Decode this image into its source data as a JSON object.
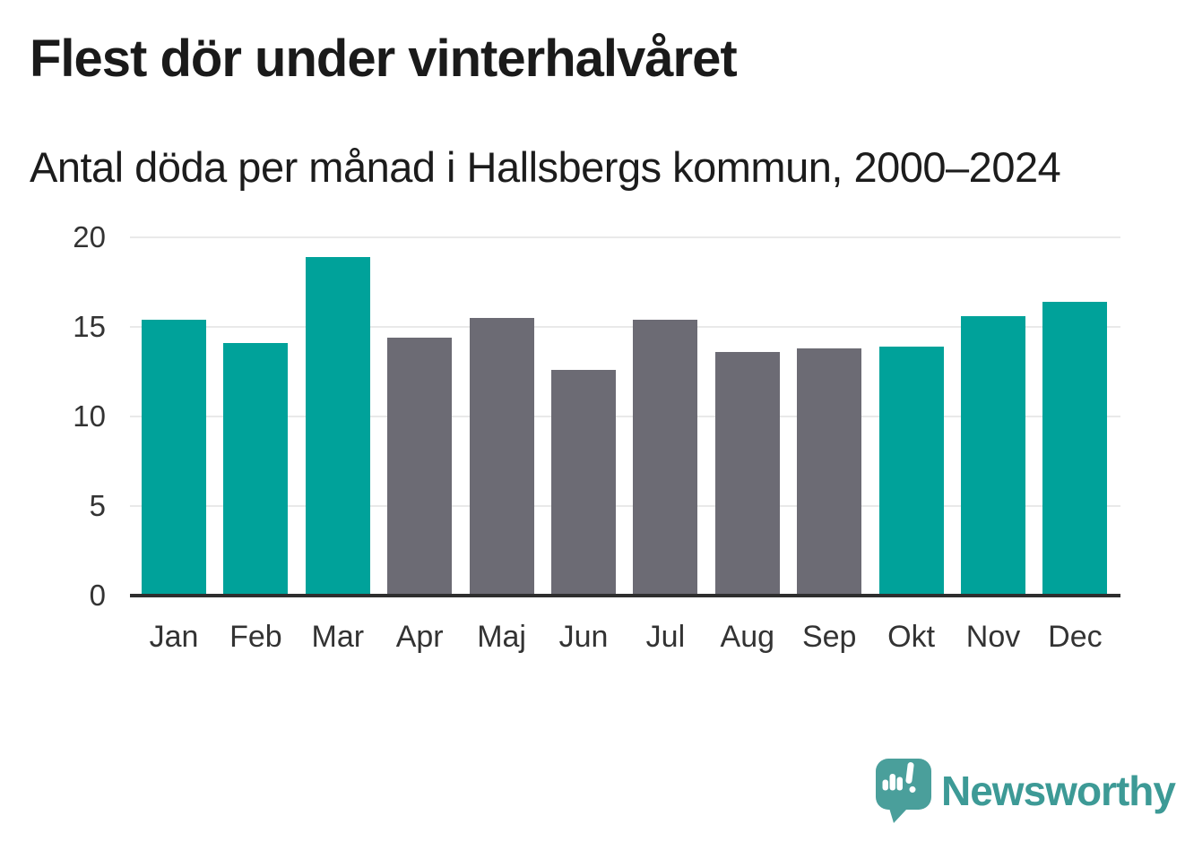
{
  "title": "Flest dör under vinterhalvåret",
  "subtitle": "Antal döda per månad i Hallsbergs kommun, 2000–2024",
  "chart_data": {
    "type": "bar",
    "categories": [
      "Jan",
      "Feb",
      "Mar",
      "Apr",
      "Maj",
      "Jun",
      "Jul",
      "Aug",
      "Sep",
      "Okt",
      "Nov",
      "Dec"
    ],
    "values": [
      15.4,
      14.1,
      18.9,
      14.4,
      15.5,
      12.6,
      15.4,
      13.6,
      13.8,
      13.9,
      15.6,
      16.4
    ],
    "highlighted_months": [
      "Jan",
      "Feb",
      "Mar",
      "Okt",
      "Nov",
      "Dec"
    ],
    "highlight_color": "#00a29a",
    "default_color": "#6c6b74",
    "title": "Flest dör under vinterhalvåret",
    "subtitle": "Antal döda per månad i Hallsbergs kommun, 2000–2024",
    "xlabel": "",
    "ylabel": "",
    "ylim": [
      0,
      20
    ],
    "yticks": [
      0,
      5,
      10,
      15,
      20
    ],
    "grid": true,
    "legend": false,
    "grid_color": "#e9e9e9",
    "axis_line_color": "#2e2e2e",
    "tick_label_color": "#333333"
  },
  "branding": {
    "logo_text": "Newsworthy",
    "logo_icon": "newsworthy-speech-bubble-bars-icon",
    "logo_color": "#3d9a96",
    "icon_color": "#4a9f9b"
  }
}
